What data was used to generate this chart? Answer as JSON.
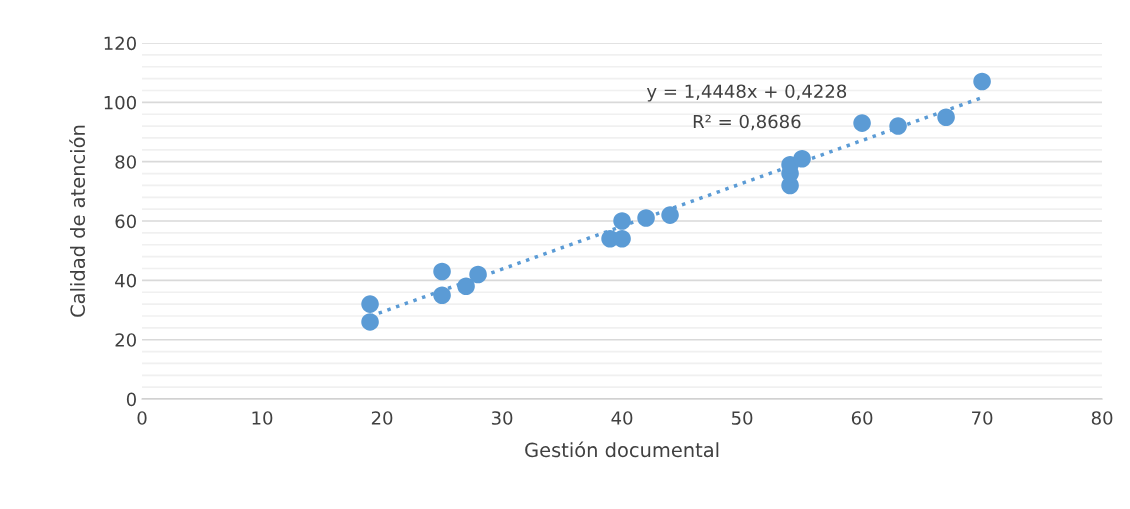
{
  "chart_data": {
    "type": "scatter",
    "xlabel": "Gestión documental",
    "ylabel": "Calidad de atención",
    "xlim": [
      0,
      80
    ],
    "xticks": [
      0,
      10,
      20,
      30,
      40,
      50,
      60,
      70,
      80
    ],
    "ylim": [
      0,
      120
    ],
    "yticks": [
      0,
      {
        "value": 4,
        "label": null
      },
      {
        "value": 8,
        "label": null
      },
      {
        "value": 12,
        "label": null
      },
      {
        "value": 16,
        "label": null
      },
      20,
      {
        "value": 24,
        "label": null
      },
      {
        "value": 28,
        "label": null
      },
      {
        "value": 32,
        "label": null
      },
      {
        "value": 36,
        "label": null
      },
      40,
      {
        "value": 44,
        "label": null
      },
      {
        "value": 48,
        "label": null
      },
      {
        "value": 52,
        "label": null
      },
      {
        "value": 56,
        "label": null
      },
      60,
      {
        "value": 64,
        "label": null
      },
      {
        "value": 68,
        "label": null
      },
      {
        "value": 72,
        "label": null
      },
      {
        "value": 76,
        "label": null
      },
      80,
      {
        "value": 84,
        "label": null
      },
      {
        "value": 88,
        "label": null
      },
      {
        "value": 92,
        "label": null
      },
      {
        "value": 96,
        "label": null
      },
      100,
      {
        "value": 104,
        "label": null
      },
      {
        "value": 108,
        "label": null
      },
      {
        "value": 112,
        "label": null
      },
      {
        "value": 116,
        "label": null
      },
      120
    ],
    "grid": "y",
    "marker": "circle",
    "legend": false,
    "series": [
      {
        "color": "#5b9bd5",
        "x": [
          19,
          19,
          25,
          25,
          27,
          28,
          39,
          40,
          40,
          42,
          44,
          54,
          54,
          54,
          55,
          60,
          63,
          67,
          70
        ],
        "values": [
          32,
          26,
          43,
          35,
          38,
          42,
          54,
          54,
          60,
          61,
          62,
          72,
          76,
          79,
          81,
          93,
          92,
          95,
          107
        ]
      },
      {
        "type": "line",
        "color": "#5b9bd5",
        "line_style": "dotted",
        "marker": "none",
        "x": [
          19,
          70
        ],
        "values": [
          27.9,
          101.6
        ]
      }
    ],
    "annotations": [
      "y = 1,4448x + 0,4228",
      "R² = 0,8686"
    ]
  }
}
